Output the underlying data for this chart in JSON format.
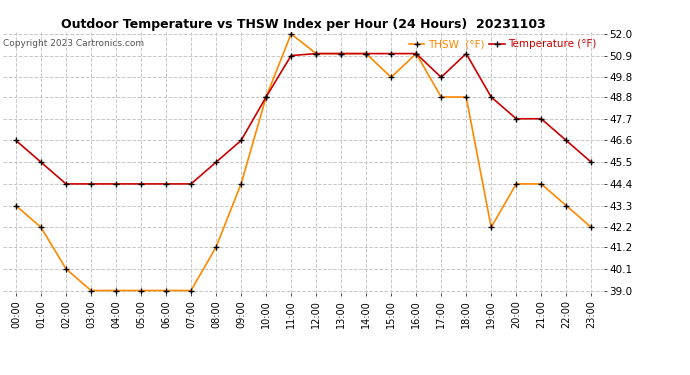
{
  "title": "Outdoor Temperature vs THSW Index per Hour (24 Hours)  20231103",
  "copyright": "Copyright 2023 Cartronics.com",
  "legend_thsw": "THSW  (°F)",
  "legend_temp": "Temperature (°F)",
  "hours": [
    "00:00",
    "01:00",
    "02:00",
    "03:00",
    "04:00",
    "05:00",
    "06:00",
    "07:00",
    "08:00",
    "09:00",
    "10:00",
    "11:00",
    "12:00",
    "13:00",
    "14:00",
    "15:00",
    "16:00",
    "17:00",
    "18:00",
    "19:00",
    "20:00",
    "21:00",
    "22:00",
    "23:00"
  ],
  "temperature": [
    46.6,
    45.5,
    44.4,
    44.4,
    44.4,
    44.4,
    44.4,
    44.4,
    45.5,
    46.6,
    48.8,
    50.9,
    51.0,
    51.0,
    51.0,
    51.0,
    51.0,
    49.8,
    51.0,
    48.8,
    47.7,
    47.7,
    46.6,
    45.5
  ],
  "thsw": [
    43.3,
    42.2,
    40.1,
    39.0,
    39.0,
    39.0,
    39.0,
    39.0,
    41.2,
    44.4,
    48.8,
    52.0,
    51.0,
    51.0,
    51.0,
    49.8,
    51.0,
    48.8,
    48.8,
    42.2,
    44.4,
    44.4,
    43.3,
    42.2
  ],
  "temp_color": "#cc0000",
  "thsw_color": "#ff8800",
  "marker_color": "black",
  "bg_color": "#ffffff",
  "grid_color": "#c8c8c8",
  "ylim_min": 39.0,
  "ylim_max": 52.0,
  "yticks": [
    39.0,
    40.1,
    41.2,
    42.2,
    43.3,
    44.4,
    45.5,
    46.6,
    47.7,
    48.8,
    49.8,
    50.9,
    52.0
  ]
}
